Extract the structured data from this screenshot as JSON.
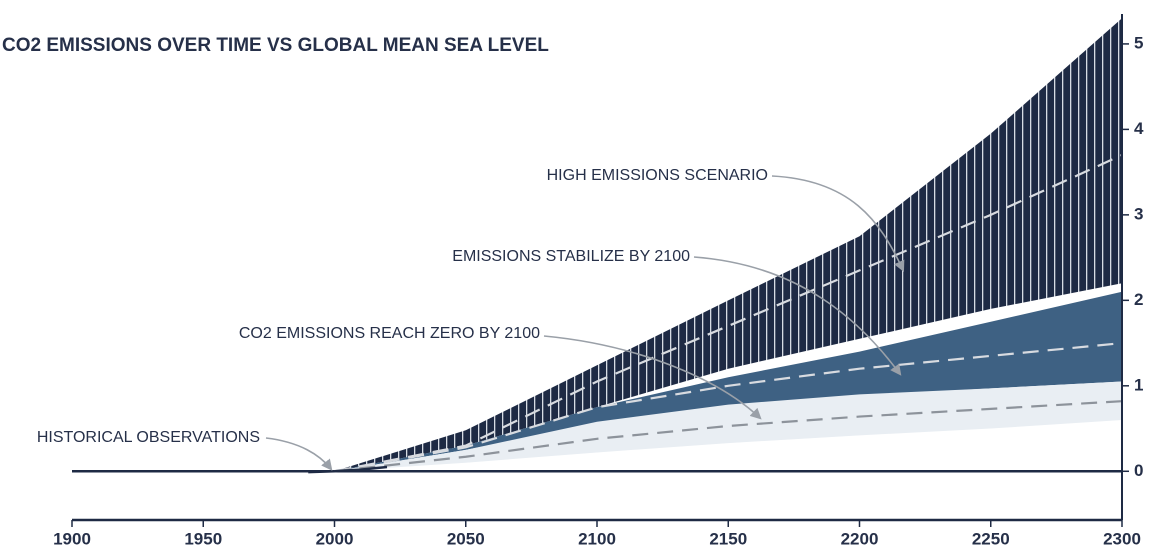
{
  "chart_data": {
    "type": "band",
    "title": "CO2 EMISSIONS OVER TIME VS GLOBAL MEAN SEA LEVEL",
    "x": [
      2000,
      2050,
      2100,
      2150,
      2200,
      2250,
      2300
    ],
    "series": [
      {
        "name": "HIGH EMISSIONS SCENARIO",
        "color": "#1e2a44",
        "upper": [
          0,
          0.48,
          1.24,
          2.0,
          2.75,
          3.95,
          5.3
        ],
        "lower": [
          0,
          0.3,
          0.75,
          1.2,
          1.55,
          1.9,
          2.2
        ],
        "median": [
          0,
          0.3,
          1.05,
          1.7,
          2.35,
          3.0,
          3.7
        ]
      },
      {
        "name": "EMISSIONS STABILIZE BY 2100",
        "color": "#3e6183",
        "upper": [
          0,
          0.3,
          0.75,
          1.1,
          1.4,
          1.75,
          2.1
        ],
        "lower": [
          0,
          0.25,
          0.55,
          0.75,
          0.88,
          0.97,
          1.05
        ],
        "median": [
          0,
          0.28,
          0.75,
          1.0,
          1.2,
          1.35,
          1.5
        ]
      },
      {
        "name": "CO2 EMISSIONS REACH ZERO BY 2100",
        "color": "#e9eef3",
        "upper": [
          0,
          0.25,
          0.58,
          0.78,
          0.9,
          0.97,
          1.05
        ],
        "lower": [
          0,
          0.1,
          0.22,
          0.33,
          0.42,
          0.5,
          0.6
        ],
        "median": [
          0,
          0.17,
          0.38,
          0.53,
          0.64,
          0.73,
          0.82
        ]
      }
    ],
    "historical": {
      "name": "HISTORICAL OBSERVATIONS",
      "color": "#1e2a44",
      "x": [
        1990,
        2000,
        2010,
        2020
      ],
      "values": [
        -0.01,
        0,
        0.02,
        0.05
      ]
    },
    "xlim": [
      1900,
      2300
    ],
    "xticks": [
      1900,
      1950,
      2000,
      2050,
      2100,
      2150,
      2200,
      2250,
      2300
    ],
    "ylim": [
      -0.57,
      5.35
    ],
    "yticks": [
      0,
      1,
      2,
      3,
      4,
      5
    ]
  }
}
